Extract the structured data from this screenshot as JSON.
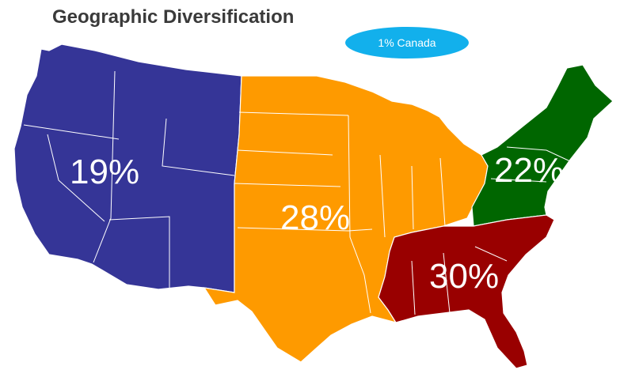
{
  "title": "Geographic Diversification",
  "badge": "1% Canada",
  "regions": [
    {
      "id": "west",
      "percent": "19%",
      "color": "#353597"
    },
    {
      "id": "central",
      "percent": "28%",
      "color": "#fe9a00"
    },
    {
      "id": "northeast",
      "percent": "22%",
      "color": "#006600"
    },
    {
      "id": "southeast",
      "percent": "30%",
      "color": "#990000"
    }
  ]
}
